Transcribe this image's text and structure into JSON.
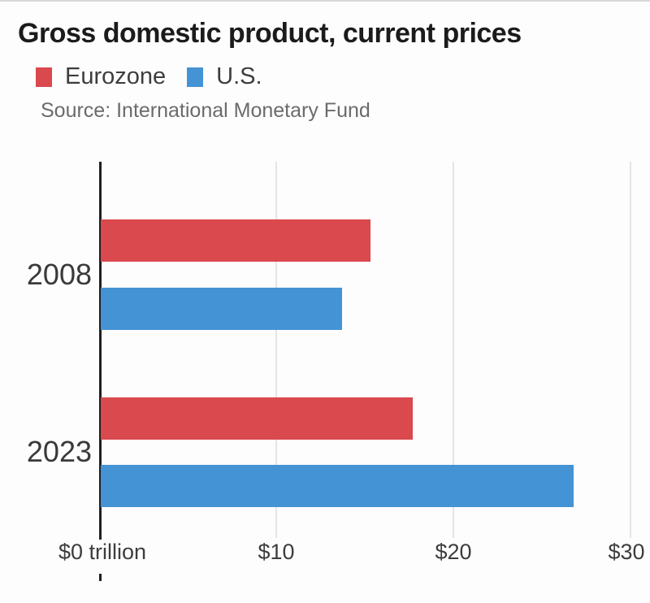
{
  "header": {
    "title": "Gross domestic product, current prices",
    "source": "Source: International Monetary Fund"
  },
  "chart_data": {
    "type": "bar",
    "orientation": "horizontal",
    "title": "Gross domestic product, current prices",
    "source": "Source: International Monetary Fund",
    "unit": "USD trillions",
    "categories": [
      "2008",
      "2023"
    ],
    "series": [
      {
        "name": "Eurozone",
        "color": "#d9494e",
        "values": [
          15.3,
          17.7
        ]
      },
      {
        "name": "U.S.",
        "color": "#4493d4",
        "values": [
          13.7,
          26.8
        ]
      }
    ],
    "xlabel": "",
    "ylabel": "",
    "xlim": [
      0,
      30
    ],
    "x_ticks": [
      {
        "value": 0,
        "label": "$0 trillion"
      },
      {
        "value": 10,
        "label": "$10"
      },
      {
        "value": 20,
        "label": "$20"
      },
      {
        "value": 30,
        "label": "$30"
      }
    ],
    "grid": "vertical",
    "legend_position": "top-left"
  },
  "colors": {
    "eurozone": "#d9494e",
    "us": "#4493d4",
    "axis": "#1f1f1f",
    "gridline": "#e4e4e4",
    "title_text": "#1b1b1b",
    "label_text": "#3d3d3d",
    "source_text": "#6b6b6b",
    "background": "#fdfdfd"
  }
}
